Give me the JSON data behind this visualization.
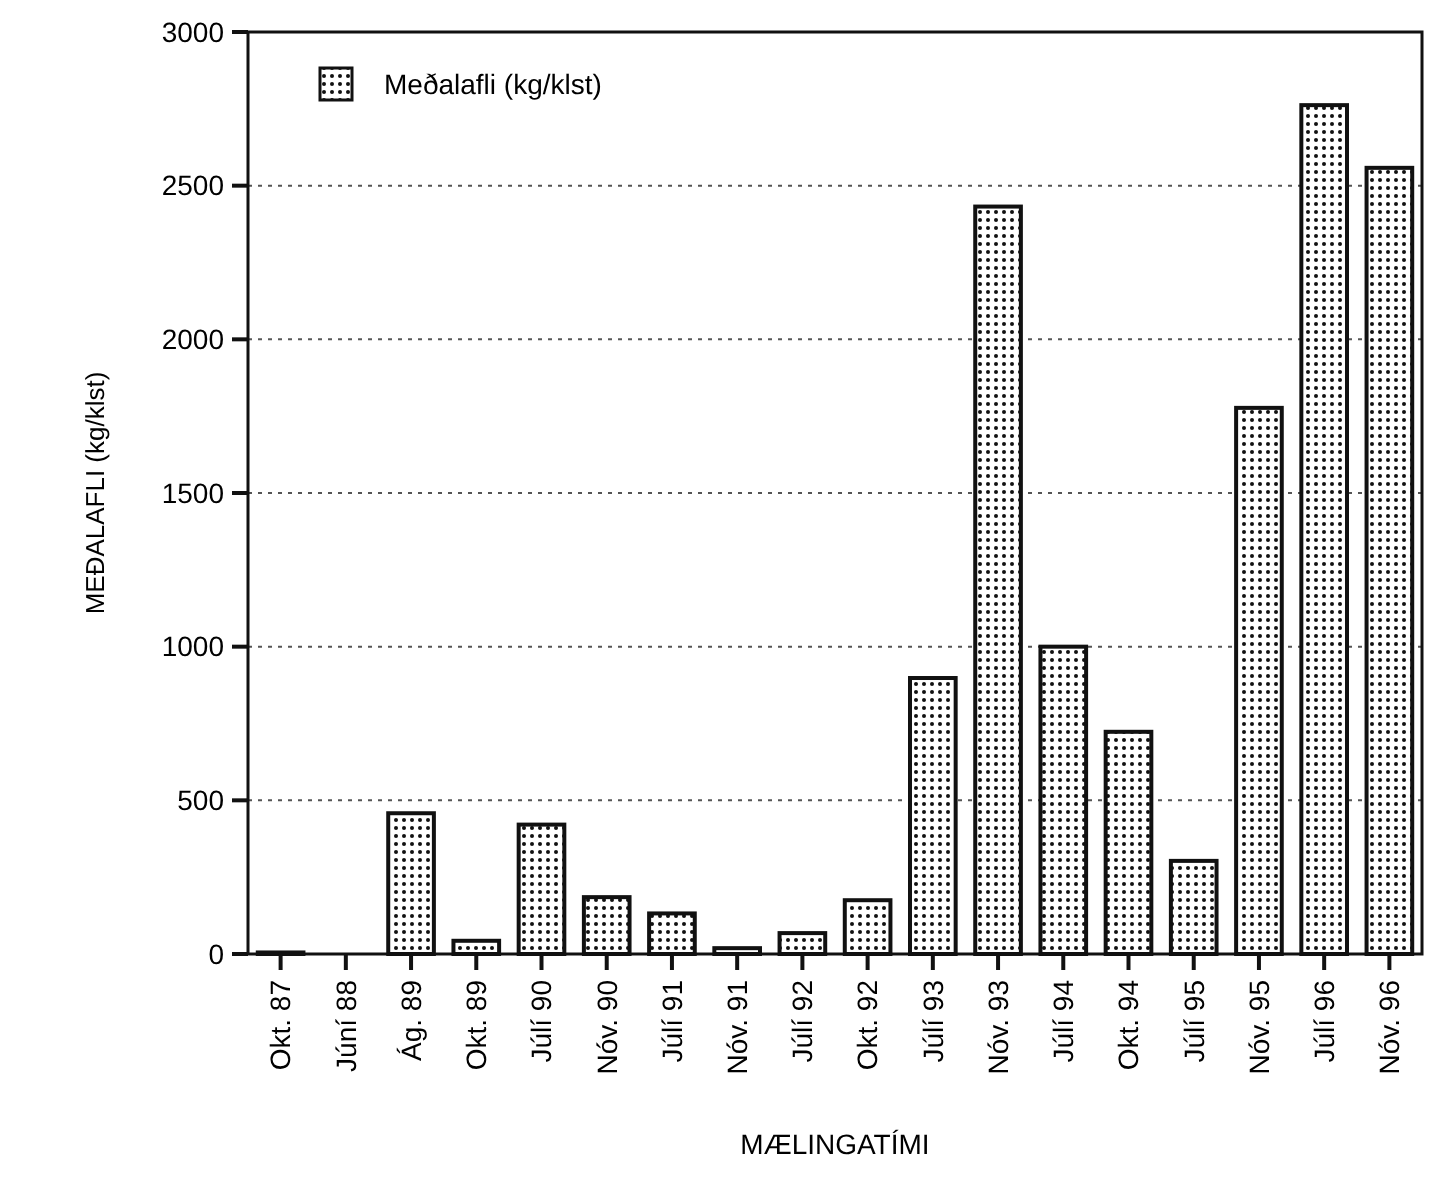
{
  "chart_data": {
    "type": "bar",
    "xlabel": "MÆLINGATÍMI",
    "ylabel": "MEÐALAFLI (kg/klst)",
    "categories": [
      "Okt. 87",
      "Júní 88",
      "Ág. 89",
      "Okt. 89",
      "Júlí 90",
      "Nóv. 90",
      "Júlí 91",
      "Nóv. 91",
      "Júlí 92",
      "Okt. 92",
      "Júlí 93",
      "Nóv. 93",
      "Júlí 94",
      "Okt. 94",
      "Júlí 95",
      "Nóv. 95",
      "Júlí 96",
      "Nóv. 96"
    ],
    "series": [
      {
        "name": "Meðalafli (kg/klst)",
        "color": "#111111",
        "values": [
          5,
          0,
          458,
          43,
          421,
          185,
          132,
          19,
          68,
          175,
          898,
          2432,
          1000,
          723,
          303,
          1777,
          2762,
          2558
        ]
      }
    ],
    "ylim": [
      0,
      3000
    ],
    "yticks": [
      0,
      500,
      1000,
      1500,
      2000,
      2500,
      3000
    ],
    "grid": "y",
    "legend": "top left"
  }
}
